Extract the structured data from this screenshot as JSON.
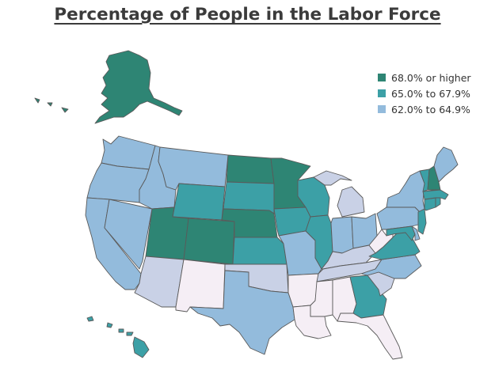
{
  "title": "Percentage of People in the Labor Force",
  "legend": [
    {
      "label": "68.0% or higher",
      "color": "#2e8574"
    },
    {
      "label": "65.0% to 67.9%",
      "color": "#3ca0a6"
    },
    {
      "label": "62.0% to 64.9%",
      "color": "#93bbdc"
    }
  ],
  "unlisted_colors": {
    "light": "#c9d1e6",
    "lightest": "#f5eef5"
  },
  "states": [
    {
      "code": "AK",
      "class": "68.0% or higher"
    },
    {
      "code": "HI",
      "class": "65.0% to 67.9%"
    },
    {
      "code": "WA",
      "class": "62.0% to 64.9%"
    },
    {
      "code": "OR",
      "class": "62.0% to 64.9%"
    },
    {
      "code": "CA",
      "class": "62.0% to 64.9%"
    },
    {
      "code": "NV",
      "class": "62.0% to 64.9%"
    },
    {
      "code": "ID",
      "class": "62.0% to 64.9%"
    },
    {
      "code": "MT",
      "class": "62.0% to 64.9%"
    },
    {
      "code": "WY",
      "class": "65.0% to 67.9%"
    },
    {
      "code": "UT",
      "class": "68.0% or higher"
    },
    {
      "code": "CO",
      "class": "68.0% or higher"
    },
    {
      "code": "AZ",
      "class": "light"
    },
    {
      "code": "NM",
      "class": "lightest"
    },
    {
      "code": "ND",
      "class": "68.0% or higher"
    },
    {
      "code": "SD",
      "class": "65.0% to 67.9%"
    },
    {
      "code": "NE",
      "class": "68.0% or higher"
    },
    {
      "code": "KS",
      "class": "65.0% to 67.9%"
    },
    {
      "code": "OK",
      "class": "light"
    },
    {
      "code": "TX",
      "class": "62.0% to 64.9%"
    },
    {
      "code": "MN",
      "class": "68.0% or higher"
    },
    {
      "code": "IA",
      "class": "65.0% to 67.9%"
    },
    {
      "code": "MO",
      "class": "62.0% to 64.9%"
    },
    {
      "code": "AR",
      "class": "lightest"
    },
    {
      "code": "LA",
      "class": "lightest"
    },
    {
      "code": "WI",
      "class": "65.0% to 67.9%"
    },
    {
      "code": "IL",
      "class": "65.0% to 67.9%"
    },
    {
      "code": "MI",
      "class": "light"
    },
    {
      "code": "IN",
      "class": "62.0% to 64.9%"
    },
    {
      "code": "OH",
      "class": "62.0% to 64.9%"
    },
    {
      "code": "KY",
      "class": "light"
    },
    {
      "code": "TN",
      "class": "light"
    },
    {
      "code": "MS",
      "class": "lightest"
    },
    {
      "code": "AL",
      "class": "lightest"
    },
    {
      "code": "GA",
      "class": "65.0% to 67.9%"
    },
    {
      "code": "FL",
      "class": "lightest"
    },
    {
      "code": "SC",
      "class": "light"
    },
    {
      "code": "NC",
      "class": "62.0% to 64.9%"
    },
    {
      "code": "VA",
      "class": "65.0% to 67.9%"
    },
    {
      "code": "WV",
      "class": "lightest"
    },
    {
      "code": "PA",
      "class": "62.0% to 64.9%"
    },
    {
      "code": "NY",
      "class": "62.0% to 64.9%"
    },
    {
      "code": "MD",
      "class": "65.0% to 67.9%"
    },
    {
      "code": "DE",
      "class": "62.0% to 64.9%"
    },
    {
      "code": "NJ",
      "class": "65.0% to 67.9%"
    },
    {
      "code": "CT",
      "class": "65.0% to 67.9%"
    },
    {
      "code": "RI",
      "class": "65.0% to 67.9%"
    },
    {
      "code": "MA",
      "class": "65.0% to 67.9%"
    },
    {
      "code": "VT",
      "class": "65.0% to 67.9%"
    },
    {
      "code": "NH",
      "class": "68.0% or higher"
    },
    {
      "code": "ME",
      "class": "62.0% to 64.9%"
    }
  ]
}
